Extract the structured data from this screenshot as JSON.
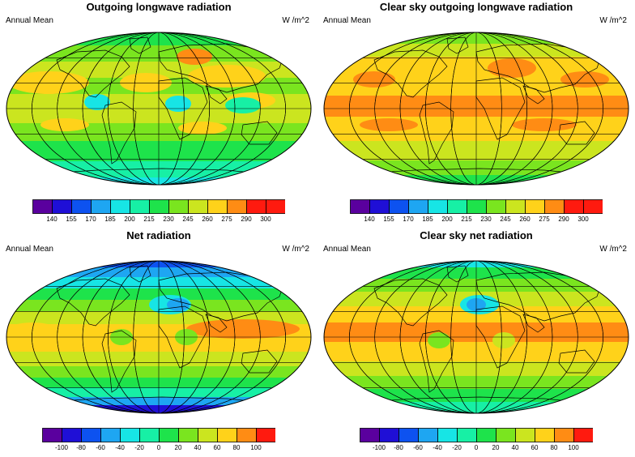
{
  "colors": [
    "#5a009e",
    "#1f0fd6",
    "#0d52f0",
    "#1ea6f2",
    "#17e5e5",
    "#17f0a5",
    "#1ee34b",
    "#7ae51f",
    "#cbe51f",
    "#ffd21a",
    "#ff8c14",
    "#ff1a0f"
  ],
  "panels": [
    {
      "title": "Outgoing longwave radiation",
      "left_label": "Annual Mean",
      "right_label": "W /m^2",
      "ticks": [
        "140",
        "155",
        "170",
        "185",
        "200",
        "215",
        "230",
        "245",
        "260",
        "275",
        "290",
        "300"
      ],
      "base": "green",
      "features": "olr"
    },
    {
      "title": "Clear sky outgoing longwave radiation",
      "left_label": "Annual Mean",
      "right_label": "W /m^2",
      "ticks": [
        "140",
        "155",
        "170",
        "185",
        "200",
        "215",
        "230",
        "245",
        "260",
        "275",
        "290",
        "300"
      ],
      "base": "orange",
      "features": "csolr"
    },
    {
      "title": "Net radiation",
      "left_label": "Annual Mean",
      "right_label": "W /m^2",
      "ticks": [
        "-100",
        "-80",
        "-60",
        "-40",
        "-20",
        "0",
        "20",
        "40",
        "60",
        "80",
        "100"
      ],
      "base": "net",
      "features": "net"
    },
    {
      "title": "Clear sky net radiation",
      "left_label": "Annual Mean",
      "right_label": "W /m^2",
      "ticks": [
        "-100",
        "-80",
        "-60",
        "-40",
        "-20",
        "0",
        "20",
        "40",
        "60",
        "80",
        "100"
      ],
      "base": "csnet",
      "features": "csnet"
    }
  ]
}
